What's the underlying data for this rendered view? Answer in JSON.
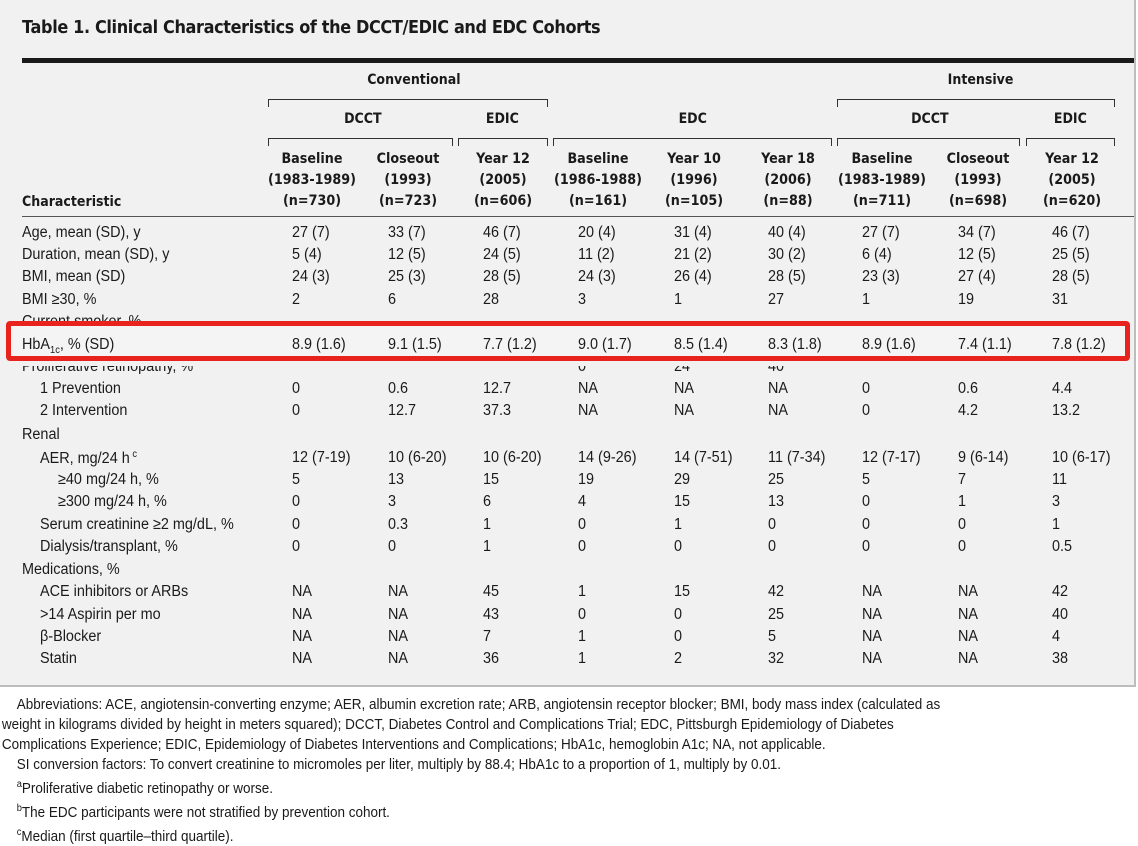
{
  "title": "Table 1. Clinical Characteristics of the DCCT/EDIC and EDC Cohorts",
  "groups": {
    "conventional": "Conventional",
    "intensive": "Intensive"
  },
  "subgroups": {
    "dcct": "DCCT",
    "edic": "EDIC",
    "edc": "EDC"
  },
  "characteristic_header": "Characteristic",
  "columns": [
    {
      "l1": "Baseline",
      "l2": "(1983-1989)",
      "l3": "(n=730)"
    },
    {
      "l1": "Closeout",
      "l2": "(1993)",
      "l3": "(n=723)"
    },
    {
      "l1": "Year 12",
      "l2": "(2005)",
      "l3": "(n=606)"
    },
    {
      "l1": "Baseline",
      "l2": "(1986-1988)",
      "l3": "(n=161)"
    },
    {
      "l1": "Year 10",
      "l2": "(1996)",
      "l3": "(n=105)"
    },
    {
      "l1": "Year 18",
      "l2": "(2006)",
      "l3": "(n=88)"
    },
    {
      "l1": "Baseline",
      "l2": "(1983-1989)",
      "l3": "(n=711)"
    },
    {
      "l1": "Closeout",
      "l2": "(1993)",
      "l3": "(n=698)"
    },
    {
      "l1": "Year 12",
      "l2": "(2005)",
      "l3": "(n=620)"
    }
  ],
  "rows": [
    {
      "label": "Age, mean (SD), y",
      "values": [
        "27 (7)",
        "33 (7)",
        "46 (7)",
        "20 (4)",
        "31 (4)",
        "40 (4)",
        "27 (7)",
        "34 (7)",
        "46 (7)"
      ]
    },
    {
      "label": "Duration, mean (SD), y",
      "values": [
        "5 (4)",
        "12 (5)",
        "24 (5)",
        "11 (2)",
        "21 (2)",
        "30 (2)",
        "6 (4)",
        "12 (5)",
        "25 (5)"
      ]
    },
    {
      "label": "BMI, mean (SD)",
      "values": [
        "24 (3)",
        "25 (3)",
        "28 (5)",
        "24 (3)",
        "26 (4)",
        "28 (5)",
        "23 (3)",
        "27 (4)",
        "28 (5)"
      ]
    },
    {
      "label": "BMI ≥30, %",
      "values": [
        "2",
        "6",
        "28",
        "3",
        "1",
        "27",
        "1",
        "19",
        "31"
      ]
    },
    {
      "label": "Current smoker, %",
      "values": [
        "",
        "",
        "",
        "",
        "",
        "",
        "",
        "",
        ""
      ]
    },
    {
      "label": "HbA1c, % (SD)",
      "values": [
        "8.9 (1.6)",
        "9.1 (1.5)",
        "7.7 (1.2)",
        "9.0 (1.7)",
        "8.5 (1.4)",
        "8.3 (1.8)",
        "8.9 (1.6)",
        "7.4 (1.1)",
        "7.8 (1.2)"
      ]
    },
    {
      "label": "Proliferative retinopathy, %",
      "values": [
        "",
        "",
        "",
        "0",
        "24",
        "40",
        "",
        "",
        ""
      ]
    },
    {
      "label": "1 Prevention",
      "values": [
        "0",
        "0.6",
        "12.7",
        "NA",
        "NA",
        "NA",
        "0",
        "0.6",
        "4.4"
      ]
    },
    {
      "label": "2 Intervention",
      "values": [
        "0",
        "12.7",
        "37.3",
        "NA",
        "NA",
        "NA",
        "0",
        "4.2",
        "13.2"
      ]
    },
    {
      "label": "Renal",
      "values": [
        "",
        "",
        "",
        "",
        "",
        "",
        "",
        "",
        ""
      ]
    },
    {
      "label": "AER, mg/24 h",
      "values": [
        "12 (7-19)",
        "10 (6-20)",
        "10 (6-20)",
        "14 (9-26)",
        "14 (7-51)",
        "11 (7-34)",
        "12 (7-17)",
        "9 (6-14)",
        "10 (6-17)"
      ]
    },
    {
      "label": "≥40 mg/24 h, %",
      "values": [
        "5",
        "13",
        "15",
        "19",
        "29",
        "25",
        "5",
        "7",
        "11"
      ]
    },
    {
      "label": "≥300 mg/24 h, %",
      "values": [
        "0",
        "3",
        "6",
        "4",
        "15",
        "13",
        "0",
        "1",
        "3"
      ]
    },
    {
      "label": "Serum creatinine ≥2 mg/dL, %",
      "values": [
        "0",
        "0.3",
        "1",
        "0",
        "1",
        "0",
        "0",
        "0",
        "1"
      ]
    },
    {
      "label": "Dialysis/transplant, %",
      "values": [
        "0",
        "0",
        "1",
        "0",
        "0",
        "0",
        "0",
        "0",
        "0.5"
      ]
    },
    {
      "label": "Medications, %",
      "values": [
        "",
        "",
        "",
        "",
        "",
        "",
        "",
        "",
        ""
      ]
    },
    {
      "label": "ACE inhibitors or ARBs",
      "values": [
        "NA",
        "NA",
        "45",
        "1",
        "15",
        "42",
        "NA",
        "NA",
        "42"
      ]
    },
    {
      "label": ">14 Aspirin per mo",
      "values": [
        "NA",
        "NA",
        "43",
        "0",
        "0",
        "25",
        "NA",
        "NA",
        "40"
      ]
    },
    {
      "label": "β-Blocker",
      "values": [
        "NA",
        "NA",
        "7",
        "1",
        "0",
        "5",
        "NA",
        "NA",
        "4"
      ]
    },
    {
      "label": "Statin",
      "values": [
        "NA",
        "NA",
        "36",
        "1",
        "2",
        "32",
        "NA",
        "NA",
        "38"
      ]
    }
  ],
  "footnotes": {
    "abbrev1": "Abbreviations: ACE, angiotensin-converting enzyme; AER, albumin excretion rate; ARB, angiotensin receptor blocker; BMI, body mass index (calculated as",
    "abbrev2": "weight in kilograms divided by height in meters squared); DCCT, Diabetes Control and Complications Trial; EDC, Pittsburgh Epidemiology of Diabetes",
    "abbrev3": "Complications Experience; EDIC, Epidemiology of Diabetes Interventions and Complications; HbA1c, hemoglobin A1c; NA, not applicable.",
    "si": "SI conversion factors: To convert creatinine to micromoles per liter, multiply by 88.4; HbA1c to a proportion of 1, multiply by 0.01.",
    "a": "Proliferative diabetic retinopathy or worse.",
    "b": "The EDC participants were not stratified by prevention cohort.",
    "c": "Median (first quartile–third quartile)."
  },
  "highlight_color": "#e8231e"
}
